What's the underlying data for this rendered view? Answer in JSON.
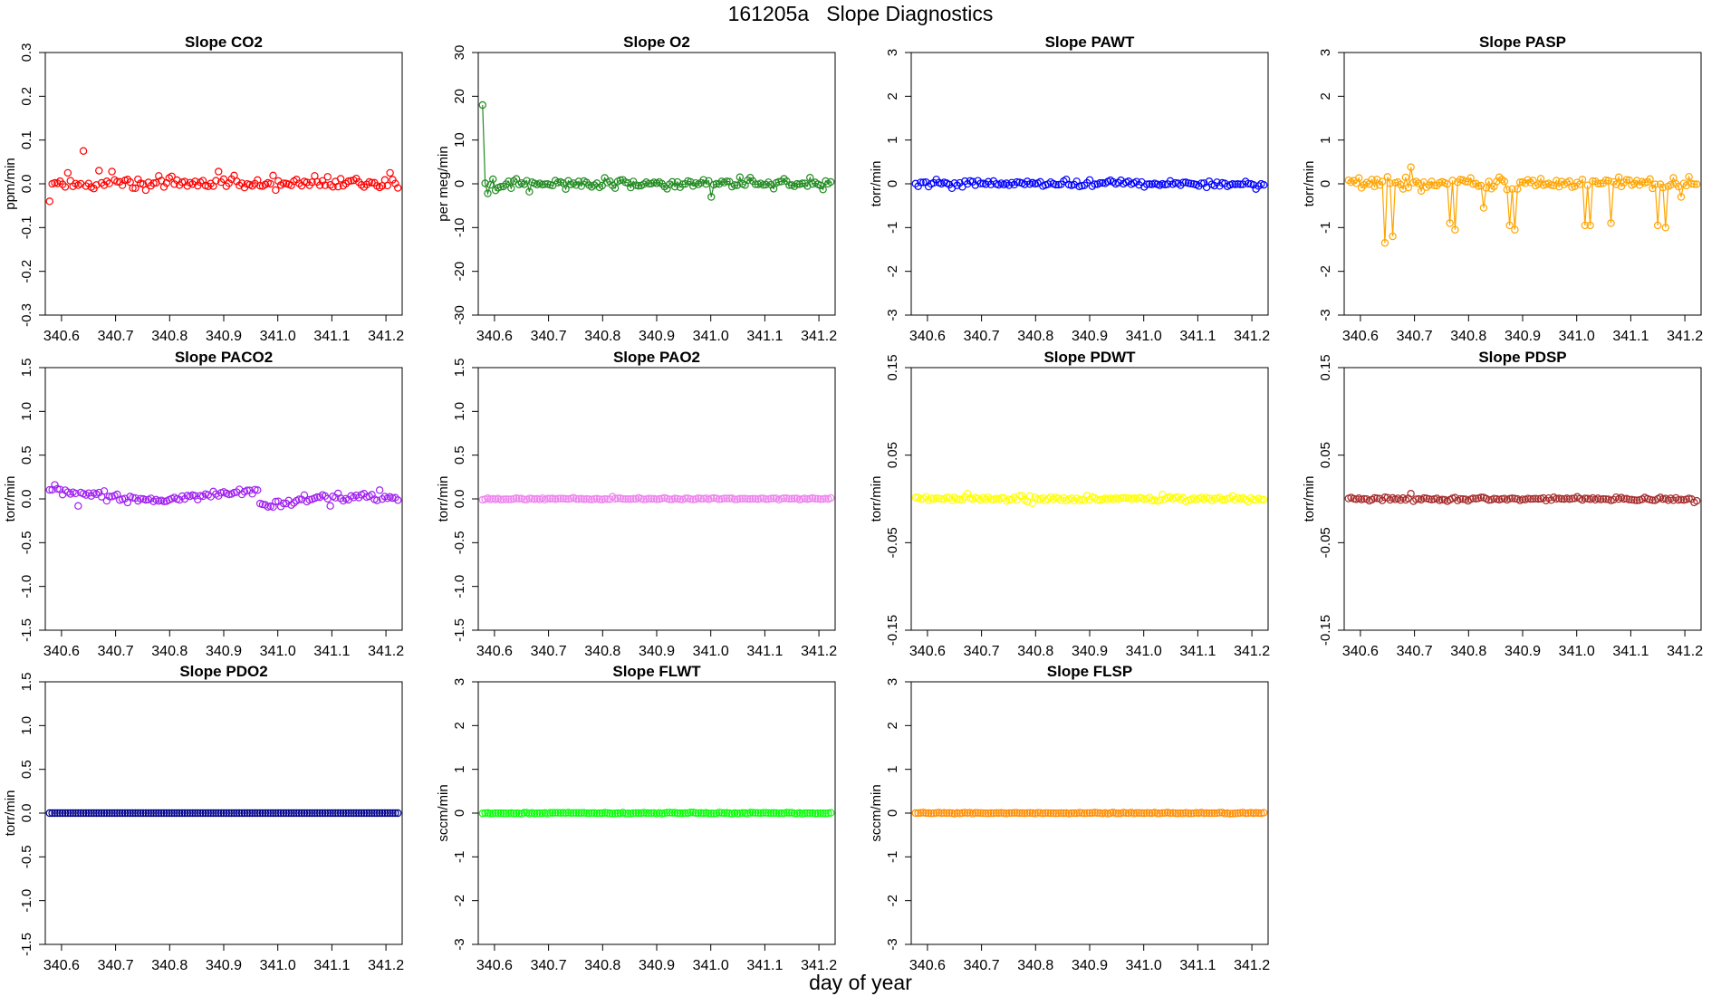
{
  "figure": {
    "title": "161205a   Slope Diagnostics",
    "xlabel": "day of year"
  },
  "chart_data": [
    {
      "type": "scatter",
      "title": "Slope CO2",
      "ylabel": "ppm/min",
      "color": "#ff0000",
      "xlim": [
        340.57,
        341.23
      ],
      "ylim": [
        -0.3,
        0.3
      ],
      "xticks": [
        "340.6",
        "340.7",
        "340.8",
        "340.9",
        "341.0",
        "341.1",
        "341.2"
      ],
      "yticks": [
        "-0.3",
        "-0.2",
        "-0.1",
        "0.0",
        "0.1",
        "0.2",
        "0.3"
      ],
      "pattern": "noise",
      "n": 135,
      "amp": 0.009,
      "spikes": [
        [
          0,
          -0.04
        ],
        [
          4,
          0.006
        ],
        [
          7,
          0.025
        ],
        [
          13,
          0.075
        ],
        [
          19,
          0.03
        ],
        [
          24,
          0.028
        ],
        [
          42,
          0.018
        ],
        [
          47,
          0.017
        ],
        [
          65,
          0.028
        ],
        [
          71,
          0.019
        ],
        [
          86,
          0.019
        ],
        [
          102,
          0.018
        ],
        [
          107,
          0.016
        ],
        [
          131,
          0.025
        ]
      ]
    },
    {
      "type": "scatter",
      "title": "Slope O2",
      "ylabel": "per meg/min",
      "color": "#228b22",
      "xlim": [
        340.57,
        341.23
      ],
      "ylim": [
        -30,
        30
      ],
      "xticks": [
        "340.6",
        "340.7",
        "340.8",
        "340.9",
        "341.0",
        "341.1",
        "341.2"
      ],
      "yticks": [
        "-30",
        "-20",
        "-10",
        "0",
        "10",
        "20",
        "30"
      ],
      "pattern": "noise",
      "n": 135,
      "amp": 0.9,
      "line": true,
      "spikes": [
        [
          0,
          18.0
        ],
        [
          2,
          -2.2
        ],
        [
          5,
          -1.5
        ],
        [
          18,
          -1.8
        ],
        [
          54,
          0.9
        ],
        [
          88,
          -3.0
        ],
        [
          99,
          1.5
        ],
        [
          103,
          1.4
        ],
        [
          126,
          1.4
        ],
        [
          131,
          -1.3
        ]
      ]
    },
    {
      "type": "scatter",
      "title": "Slope PAWT",
      "ylabel": "torr/min",
      "color": "#0000ff",
      "xlim": [
        340.57,
        341.23
      ],
      "ylim": [
        -3,
        3
      ],
      "xticks": [
        "340.6",
        "340.7",
        "340.8",
        "340.9",
        "341.0",
        "341.1",
        "341.2"
      ],
      "yticks": [
        "-3",
        "-2",
        "-1",
        "0",
        "1",
        "2",
        "3"
      ],
      "pattern": "noise",
      "n": 135,
      "amp": 0.06,
      "spikes": [
        [
          8,
          0.1
        ],
        [
          14,
          -0.1
        ],
        [
          58,
          0.1
        ],
        [
          75,
          0.08
        ],
        [
          131,
          -0.12
        ]
      ]
    },
    {
      "type": "scatter",
      "title": "Slope PASP",
      "ylabel": "torr/min",
      "color": "#ffa500",
      "xlim": [
        340.57,
        341.23
      ],
      "ylim": [
        -3,
        3
      ],
      "xticks": [
        "340.6",
        "340.7",
        "340.8",
        "340.9",
        "341.0",
        "341.1",
        "341.2"
      ],
      "yticks": [
        "-3",
        "-2",
        "-1",
        "0",
        "1",
        "2",
        "3"
      ],
      "pattern": "noise",
      "n": 135,
      "amp": 0.1,
      "line": true,
      "spikes": [
        [
          11,
          0.1
        ],
        [
          14,
          -1.35
        ],
        [
          17,
          -1.2
        ],
        [
          24,
          0.38
        ],
        [
          39,
          -0.9
        ],
        [
          41,
          -1.05
        ],
        [
          52,
          -0.55
        ],
        [
          58,
          0.15
        ],
        [
          62,
          -0.95
        ],
        [
          64,
          -1.05
        ],
        [
          91,
          -0.95
        ],
        [
          93,
          -0.95
        ],
        [
          101,
          -0.9
        ],
        [
          104,
          0.15
        ],
        [
          119,
          -0.95
        ],
        [
          122,
          -1.0
        ],
        [
          128,
          -0.3
        ]
      ]
    },
    {
      "type": "scatter",
      "title": "Slope PACO2",
      "ylabel": "torr/min",
      "color": "#a020f0",
      "xlim": [
        340.57,
        341.23
      ],
      "ylim": [
        -1.5,
        1.5
      ],
      "xticks": [
        "340.6",
        "340.7",
        "340.8",
        "340.9",
        "341.0",
        "341.1",
        "341.2"
      ],
      "yticks": [
        "-1.5",
        "-1.0",
        "-0.5",
        "0.0",
        "0.5",
        "1.0",
        "1.5"
      ],
      "pattern": "drift",
      "n": 135,
      "amp": 0.035,
      "drift": [
        0.09,
        -0.02,
        0.1,
        -0.07,
        0.02
      ],
      "break": 81,
      "spikes": [
        [
          2,
          0.16
        ],
        [
          11,
          -0.08
        ],
        [
          21,
          0.09
        ],
        [
          80,
          0.1
        ],
        [
          108,
          -0.08
        ],
        [
          127,
          0.1
        ]
      ]
    },
    {
      "type": "scatter",
      "title": "Slope PAO2",
      "ylabel": "torr/min",
      "color": "#ee82ee",
      "xlim": [
        340.57,
        341.23
      ],
      "ylim": [
        -1.5,
        1.5
      ],
      "xticks": [
        "340.6",
        "340.7",
        "340.8",
        "340.9",
        "341.0",
        "341.1",
        "341.2"
      ],
      "yticks": [
        "-1.5",
        "-1.0",
        "-0.5",
        "0.0",
        "0.5",
        "1.0",
        "1.5"
      ],
      "pattern": "noise",
      "n": 135,
      "amp": 0.008,
      "spikes": [
        [
          0,
          -0.01
        ],
        [
          50,
          0.025
        ],
        [
          134,
          0.01
        ]
      ]
    },
    {
      "type": "scatter",
      "title": "Slope PDWT",
      "ylabel": "torr/min",
      "color": "#ffff00",
      "xlim": [
        340.57,
        341.23
      ],
      "ylim": [
        -0.15,
        0.15
      ],
      "xticks": [
        "340.6",
        "340.7",
        "340.8",
        "340.9",
        "341.0",
        "341.1",
        "341.2"
      ],
      "yticks": [
        "-0.15",
        "-0.05",
        "0.05",
        "0.15"
      ],
      "pattern": "noise",
      "n": 135,
      "amp": 0.0025,
      "spikes": [
        [
          20,
          0.006
        ],
        [
          45,
          -0.005
        ],
        [
          95,
          0.005
        ]
      ]
    },
    {
      "type": "scatter",
      "title": "Slope PDSP",
      "ylabel": "torr/min",
      "color": "#a52a2a",
      "xlim": [
        340.57,
        341.23
      ],
      "ylim": [
        -0.15,
        0.15
      ],
      "xticks": [
        "340.6",
        "340.7",
        "340.8",
        "340.9",
        "341.0",
        "341.1",
        "341.2"
      ],
      "yticks": [
        "-0.15",
        "-0.05",
        "0.05",
        "0.15"
      ],
      "pattern": "noise",
      "n": 135,
      "amp": 0.0018,
      "spikes": [
        [
          24,
          0.006
        ],
        [
          133,
          -0.004
        ]
      ]
    },
    {
      "type": "scatter",
      "title": "Slope PDO2",
      "ylabel": "torr/min",
      "color": "#00008b",
      "xlim": [
        340.57,
        341.23
      ],
      "ylim": [
        -1.5,
        1.5
      ],
      "xticks": [
        "340.6",
        "340.7",
        "340.8",
        "340.9",
        "341.0",
        "341.1",
        "341.2"
      ],
      "yticks": [
        "-1.5",
        "-1.0",
        "-0.5",
        "0.0",
        "0.5",
        "1.0",
        "1.5"
      ],
      "pattern": "flat",
      "n": 135,
      "amp": 0.0,
      "spikes": []
    },
    {
      "type": "scatter",
      "title": "Slope FLWT",
      "ylabel": "sccm/min",
      "color": "#00ff00",
      "xlim": [
        340.57,
        341.23
      ],
      "ylim": [
        -3,
        3
      ],
      "xticks": [
        "340.6",
        "340.7",
        "340.8",
        "340.9",
        "341.0",
        "341.1",
        "341.2"
      ],
      "yticks": [
        "-3",
        "-2",
        "-1",
        "0",
        "1",
        "2",
        "3"
      ],
      "pattern": "noise",
      "n": 135,
      "amp": 0.01,
      "spikes": []
    },
    {
      "type": "scatter",
      "title": "Slope FLSP",
      "ylabel": "sccm/min",
      "color": "#ff8c00",
      "xlim": [
        340.57,
        341.23
      ],
      "ylim": [
        -3,
        3
      ],
      "xticks": [
        "340.6",
        "340.7",
        "340.8",
        "340.9",
        "341.0",
        "341.1",
        "341.2"
      ],
      "yticks": [
        "-3",
        "-2",
        "-1",
        "0",
        "1",
        "2",
        "3"
      ],
      "pattern": "noise",
      "n": 135,
      "amp": 0.01,
      "spikes": []
    }
  ]
}
